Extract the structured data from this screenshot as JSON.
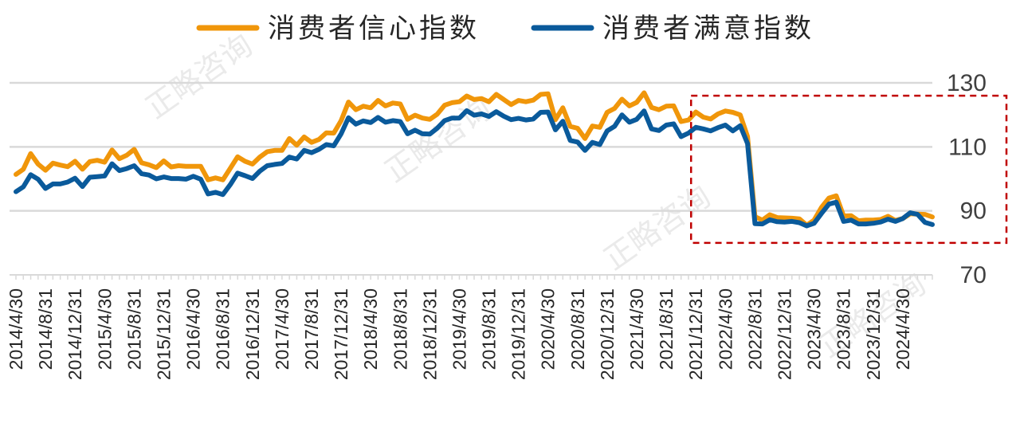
{
  "chart_data": {
    "type": "line",
    "title": "",
    "xlabel": "",
    "ylabel": "",
    "ylim": [
      70,
      130
    ],
    "yticks": [
      70,
      90,
      110,
      130
    ],
    "grid": true,
    "legend_position": "top-center",
    "x_tick_labels": [
      "2014/4/30",
      "2014/8/31",
      "2014/12/31",
      "2015/4/30",
      "2015/8/31",
      "2015/12/31",
      "2016/4/30",
      "2016/8/31",
      "2016/12/31",
      "2017/4/30",
      "2017/8/31",
      "2017/12/31",
      "2018/4/30",
      "2018/8/31",
      "2018/12/31",
      "2019/4/30",
      "2019/8/31",
      "2019/12/31",
      "2020/4/30",
      "2020/8/31",
      "2020/12/31",
      "2021/4/30",
      "2021/8/31",
      "2021/12/31",
      "2022/4/30",
      "2022/8/31",
      "2022/12/31",
      "2023/4/30",
      "2023/8/31",
      "2023/12/31",
      "2024/4/30"
    ],
    "highlight_box": {
      "x_start": "2021/12/31",
      "x_end": "2024/4/30",
      "y_range": [
        80,
        126
      ],
      "color": "#c00000",
      "style": "dashed"
    },
    "watermark": "正略咨询",
    "series": [
      {
        "name": "消费者信心指数",
        "color": "#f0960a",
        "values": [
          101.4,
          103.0,
          107.9,
          104.6,
          102.7,
          104.9,
          104.3,
          103.8,
          105.5,
          103.0,
          105.4,
          105.8,
          105.2,
          109.0,
          106.3,
          107.4,
          109.2,
          105.0,
          104.4,
          103.5,
          105.6,
          103.7,
          104.1,
          103.9,
          103.9,
          103.9,
          99.7,
          100.3,
          99.7,
          103.3,
          106.9,
          105.5,
          104.6,
          106.8,
          108.5,
          108.9,
          108.9,
          112.6,
          110.5,
          113.1,
          111.4,
          112.3,
          114.4,
          114.3,
          118.2,
          124.0,
          121.6,
          122.7,
          122.2,
          124.5,
          122.8,
          123.7,
          123.4,
          118.6,
          119.9,
          119.0,
          118.6,
          120.2,
          123.0,
          123.8,
          124.1,
          125.9,
          124.8,
          125.1,
          124.1,
          126.4,
          124.8,
          123.2,
          124.5,
          124.1,
          124.6,
          126.4,
          126.6,
          118.5,
          122.2,
          116.4,
          115.8,
          112.6,
          116.5,
          116.1,
          120.8,
          122.0,
          124.9,
          122.8,
          123.9,
          126.9,
          122.3,
          121.6,
          122.7,
          122.8,
          117.9,
          118.4,
          120.9,
          119.3,
          118.7,
          120.3,
          121.2,
          120.8,
          120.0,
          113.2,
          88.2,
          87.1,
          88.8,
          87.9,
          87.8,
          87.7,
          87.5,
          85.5,
          87.1,
          91.1,
          94.0,
          94.7,
          88.4,
          88.5,
          86.9,
          87.1,
          87.1,
          87.3,
          88.3,
          87.0,
          87.6,
          89.1,
          89.0,
          88.9,
          88.1
        ]
      },
      {
        "name": "消费者满意指数",
        "color": "#0a5a9b",
        "values": [
          96.0,
          97.5,
          101.3,
          99.9,
          97.0,
          98.4,
          98.4,
          99.0,
          100.2,
          97.6,
          100.5,
          100.7,
          100.9,
          104.7,
          102.6,
          103.2,
          104.1,
          101.6,
          101.2,
          100.0,
          100.6,
          100.1,
          100.1,
          99.9,
          100.8,
          99.9,
          95.3,
          95.8,
          95.1,
          98.2,
          101.8,
          101.0,
          100.1,
          102.4,
          104.1,
          104.5,
          104.8,
          106.8,
          106.2,
          108.9,
          108.2,
          109.2,
          110.7,
          110.3,
          114.1,
          119.1,
          117.1,
          118.1,
          117.6,
          119.2,
          117.7,
          118.2,
          117.9,
          114.1,
          115.2,
          114.1,
          114.0,
          115.8,
          118.2,
          119.0,
          119.0,
          121.3,
          119.9,
          120.3,
          119.5,
          121.0,
          119.6,
          118.5,
          118.9,
          118.4,
          118.7,
          120.8,
          120.9,
          115.3,
          118.0,
          112.0,
          111.5,
          108.9,
          111.4,
          110.7,
          115.0,
          116.4,
          120.0,
          117.7,
          118.6,
          121.2,
          115.6,
          115.1,
          116.8,
          117.2,
          113.2,
          114.3,
          116.1,
          115.6,
          115.0,
          116.0,
          116.8,
          115.0,
          116.6,
          111.0,
          86.0,
          85.9,
          87.2,
          86.6,
          86.5,
          86.7,
          86.3,
          85.3,
          86.1,
          89.2,
          92.1,
          92.7,
          86.7,
          87.1,
          85.9,
          85.9,
          86.1,
          86.5,
          87.4,
          86.7,
          87.6,
          89.4,
          88.9,
          86.4,
          85.7
        ]
      }
    ]
  }
}
